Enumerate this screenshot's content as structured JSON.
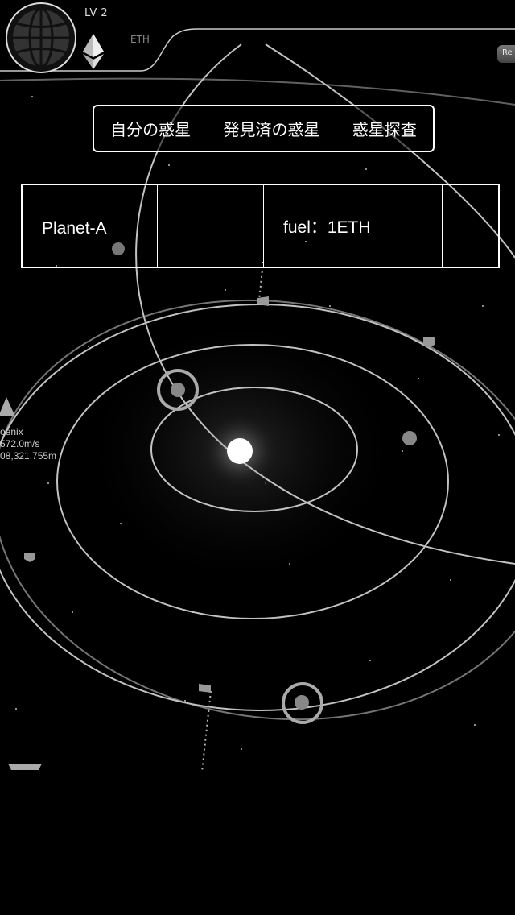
{
  "hud": {
    "level": "LV 2",
    "currency": "ETH",
    "corner_button": "Re",
    "globe_icon": "globe-icon",
    "eth_icon": "ethereum-icon"
  },
  "tabs": [
    {
      "label": "自分の惑星"
    },
    {
      "label": "発見済の惑星"
    },
    {
      "label": "惑星探査"
    }
  ],
  "planet_info": {
    "name": "Planet-A",
    "fuel": "fuel：1ETH"
  },
  "ship": {
    "name": "oenix",
    "speed": "572.0m/s",
    "distance": "08,321,755m"
  },
  "colors": {
    "background": "#000000",
    "orbit": "#d8d8d8",
    "ring": "#aaaaaa",
    "text": "#ffffff"
  }
}
